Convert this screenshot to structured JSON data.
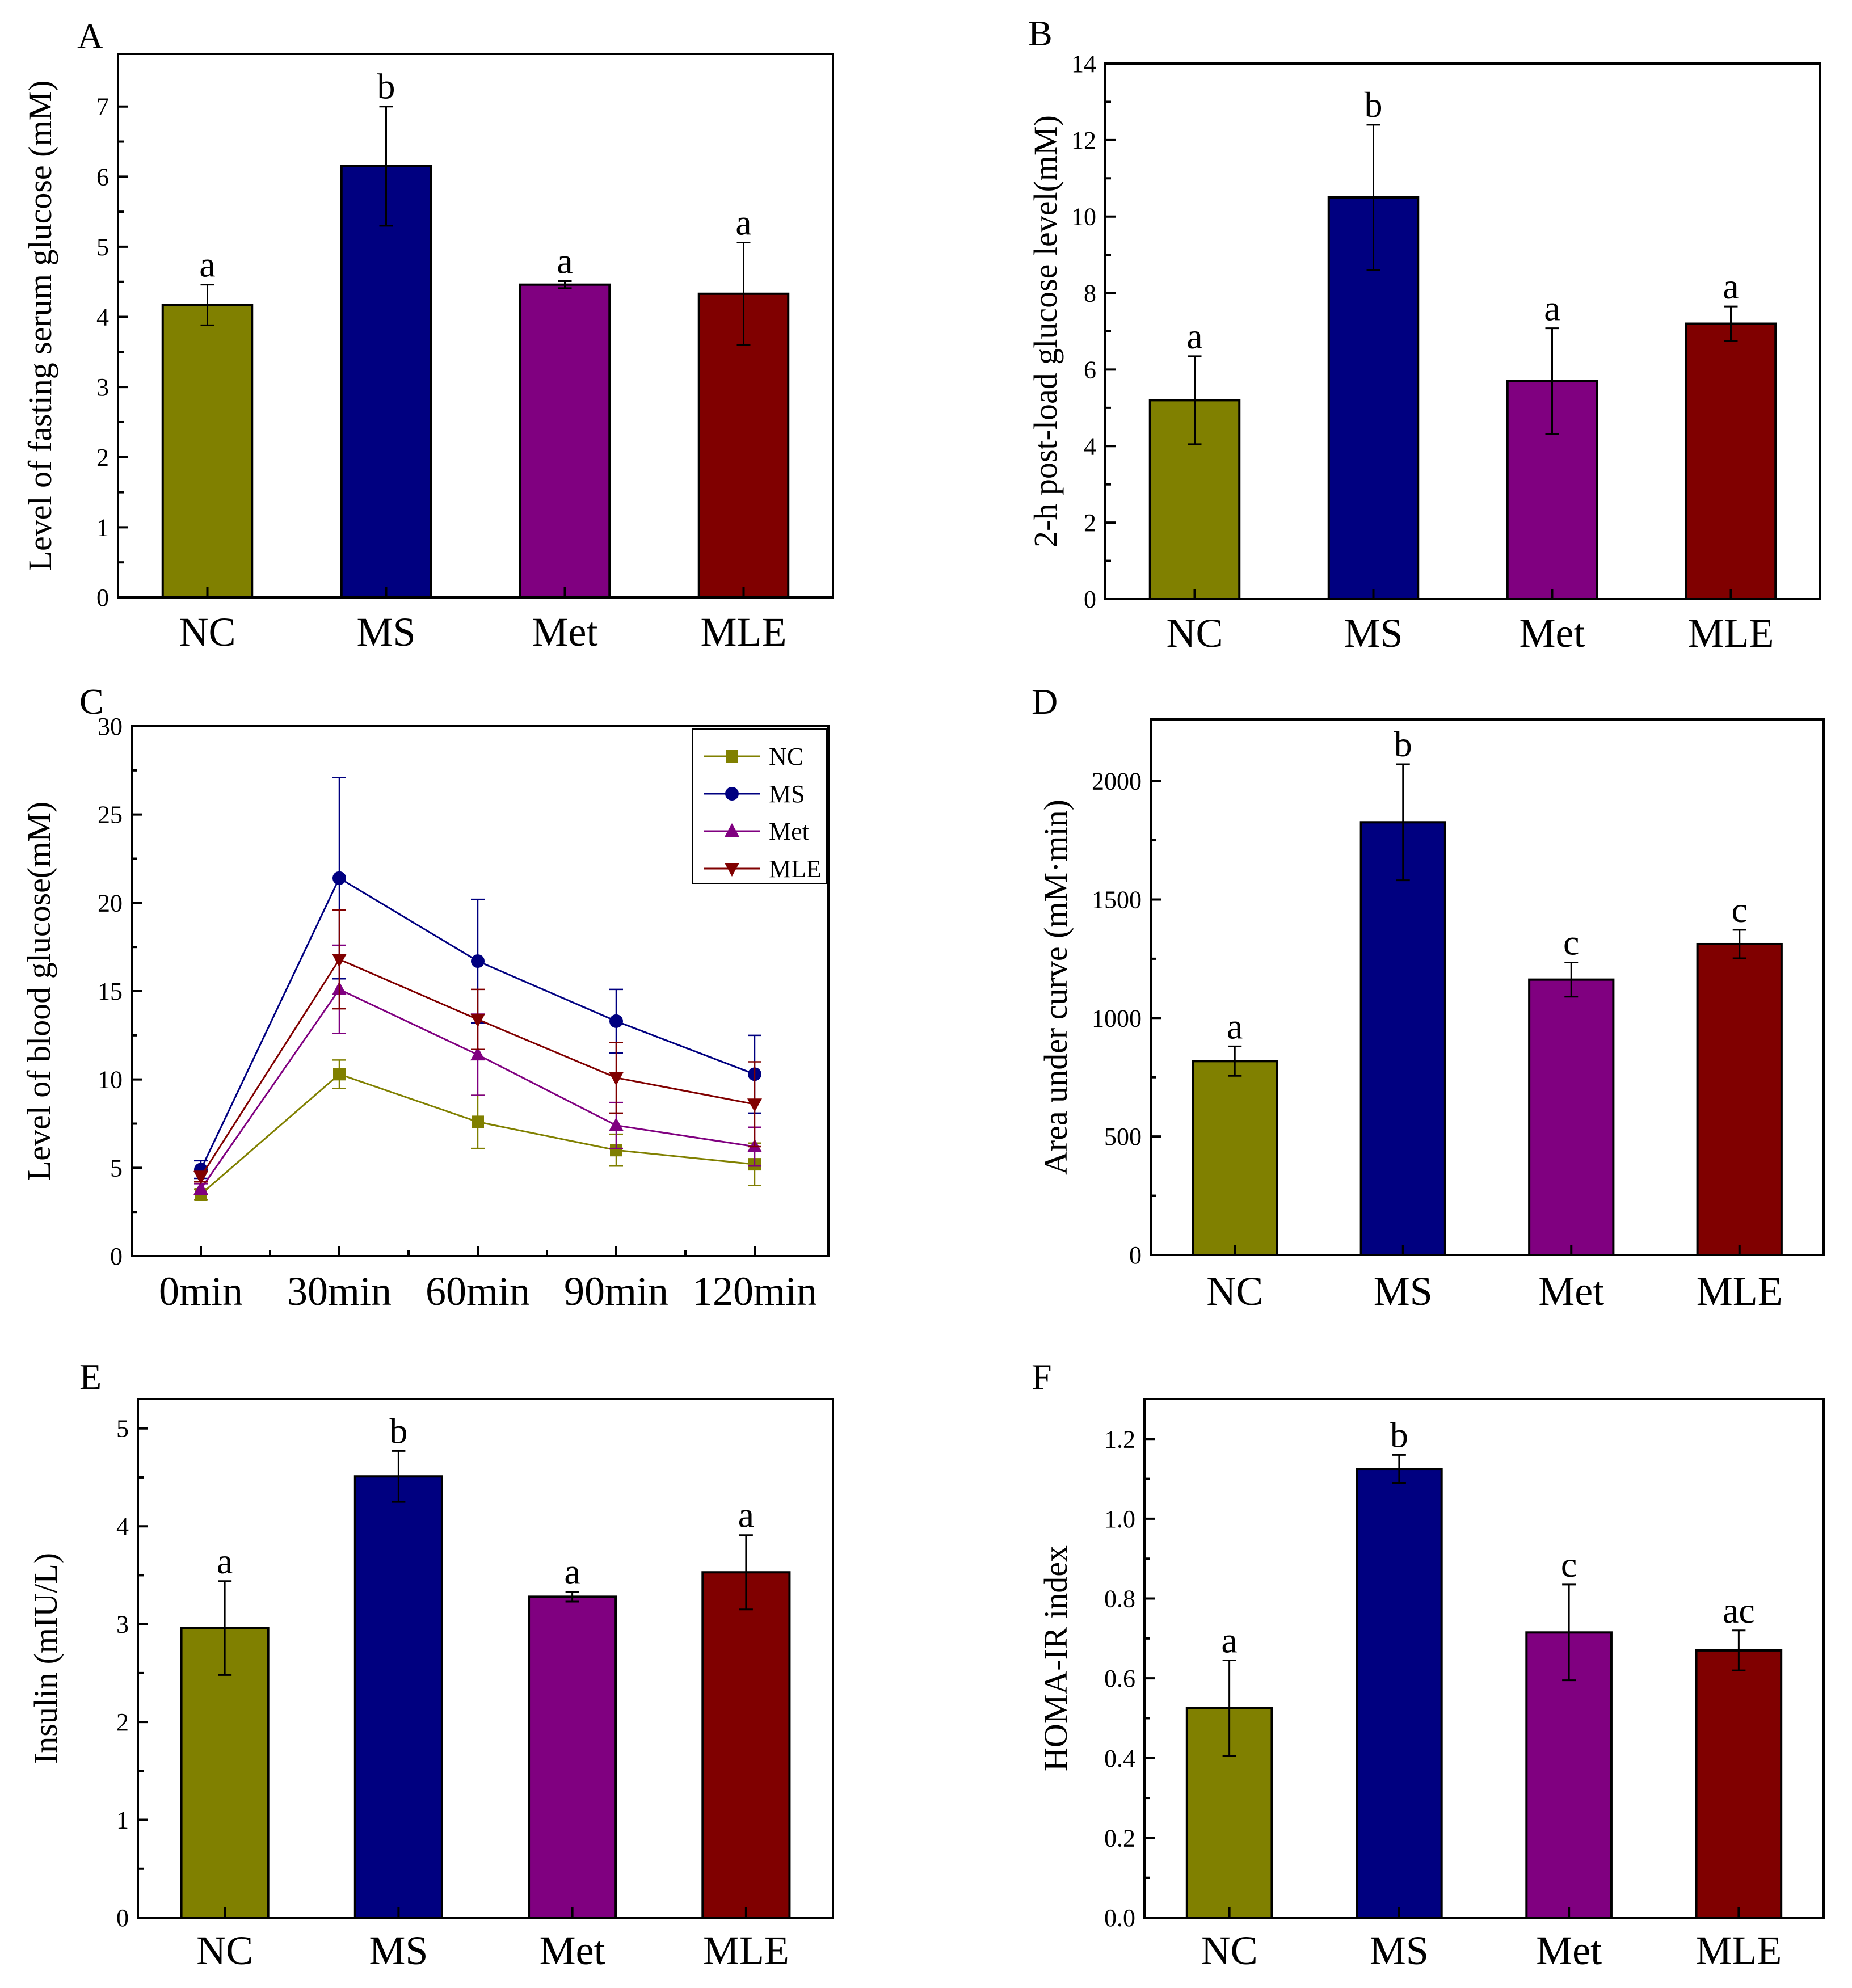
{
  "colors": {
    "NC": "#808000",
    "MS": "#000080",
    "Met": "#800080",
    "MLE": "#800000"
  },
  "chart_data": [
    {
      "id": "A",
      "type": "bar",
      "panel_letter": "A",
      "categories": [
        "NC",
        "MS",
        "Met",
        "MLE"
      ],
      "values": [
        4.17,
        6.15,
        4.46,
        4.33
      ],
      "errors": [
        0.29,
        0.85,
        0.05,
        0.73
      ],
      "significance": [
        "a",
        "b",
        "a",
        "a"
      ],
      "ylabel": "Level of fasting serum glucose (mM)",
      "ylim": [
        0,
        7.75
      ],
      "yticks": [
        0,
        1,
        2,
        3,
        4,
        5,
        6,
        7
      ],
      "ytick_labels": [
        "0",
        "1",
        "2",
        "3",
        "4",
        "5",
        "6",
        "7"
      ]
    },
    {
      "id": "B",
      "type": "bar",
      "panel_letter": "B",
      "categories": [
        "NC",
        "MS",
        "Met",
        "MLE"
      ],
      "values": [
        5.2,
        10.5,
        5.7,
        7.2
      ],
      "errors": [
        1.15,
        1.9,
        1.38,
        0.45
      ],
      "significance": [
        "a",
        "b",
        "a",
        "a"
      ],
      "ylabel": "2-h post-load glucose level(mM)",
      "ylim": [
        0,
        14
      ],
      "yticks": [
        0,
        2,
        4,
        6,
        8,
        10,
        12,
        14
      ],
      "ytick_labels": [
        "0",
        "2",
        "4",
        "6",
        "8",
        "10",
        "12",
        "14"
      ]
    },
    {
      "id": "C",
      "type": "line",
      "panel_letter": "C",
      "x": [
        "0min",
        "30min",
        "60min",
        "90min",
        "120min"
      ],
      "series": [
        {
          "name": "NC",
          "marker": "square",
          "values": [
            3.5,
            10.3,
            7.6,
            6.0,
            5.2
          ],
          "errors": [
            0.3,
            0.8,
            1.5,
            0.9,
            1.2
          ]
        },
        {
          "name": "MS",
          "marker": "circle",
          "values": [
            4.9,
            21.4,
            16.7,
            13.3,
            10.3
          ],
          "errors": [
            0.5,
            5.7,
            3.5,
            1.8,
            2.2
          ]
        },
        {
          "name": "Met",
          "marker": "triangle-up",
          "values": [
            3.8,
            15.1,
            11.4,
            7.4,
            6.2
          ],
          "errors": [
            0.3,
            2.5,
            2.3,
            1.3,
            1.1
          ]
        },
        {
          "name": "MLE",
          "marker": "triangle-down",
          "values": [
            4.5,
            16.8,
            13.4,
            10.1,
            8.6
          ],
          "errors": [
            0.3,
            2.8,
            1.7,
            2.0,
            2.4
          ]
        }
      ],
      "legend": [
        "NC",
        "MS",
        "Met",
        "MLE"
      ],
      "legend_position": "top-right",
      "ylabel": "Level of blood glucose(mM)",
      "ylim": [
        0,
        30
      ],
      "yticks": [
        0,
        5,
        10,
        15,
        20,
        25,
        30
      ],
      "ytick_labels": [
        "0",
        "5",
        "10",
        "15",
        "20",
        "25",
        "30"
      ]
    },
    {
      "id": "D",
      "type": "bar",
      "panel_letter": "D",
      "categories": [
        "NC",
        "MS",
        "Met",
        "MLE"
      ],
      "values": [
        818,
        1826,
        1162,
        1312
      ],
      "errors": [
        62,
        245,
        72,
        60
      ],
      "significance": [
        "a",
        "b",
        "c",
        "c"
      ],
      "ylabel": "Area under curve (mM·min)",
      "ylim": [
        0,
        2260
      ],
      "yticks": [
        0,
        500,
        1000,
        1500,
        2000
      ],
      "ytick_labels": [
        "0",
        "500",
        "1000",
        "1500",
        "2000"
      ]
    },
    {
      "id": "E",
      "type": "bar",
      "panel_letter": "E",
      "categories": [
        "NC",
        "MS",
        "Met",
        "MLE"
      ],
      "values": [
        2.96,
        4.51,
        3.28,
        3.53
      ],
      "errors": [
        0.48,
        0.26,
        0.05,
        0.38
      ],
      "significance": [
        "a",
        "b",
        "a",
        "a"
      ],
      "ylabel": "Insulin (mIU/L)",
      "ylim": [
        0,
        5.3
      ],
      "yticks": [
        0,
        1,
        2,
        3,
        4,
        5
      ],
      "ytick_labels": [
        "0",
        "1",
        "2",
        "3",
        "4",
        "5"
      ]
    },
    {
      "id": "F",
      "type": "bar",
      "panel_letter": "F",
      "categories": [
        "NC",
        "MS",
        "Met",
        "MLE"
      ],
      "values": [
        0.525,
        1.125,
        0.715,
        0.67
      ],
      "errors": [
        0.12,
        0.035,
        0.12,
        0.05
      ],
      "significance": [
        "a",
        "b",
        "c",
        "ac"
      ],
      "ylabel": "HOMA-IR index",
      "ylim": [
        0,
        1.3
      ],
      "yticks": [
        0,
        0.2,
        0.4,
        0.6,
        0.8,
        1.0,
        1.2
      ],
      "ytick_labels": [
        "0.0",
        "0.2",
        "0.4",
        "0.6",
        "0.8",
        "1.0",
        "1.2"
      ]
    }
  ]
}
